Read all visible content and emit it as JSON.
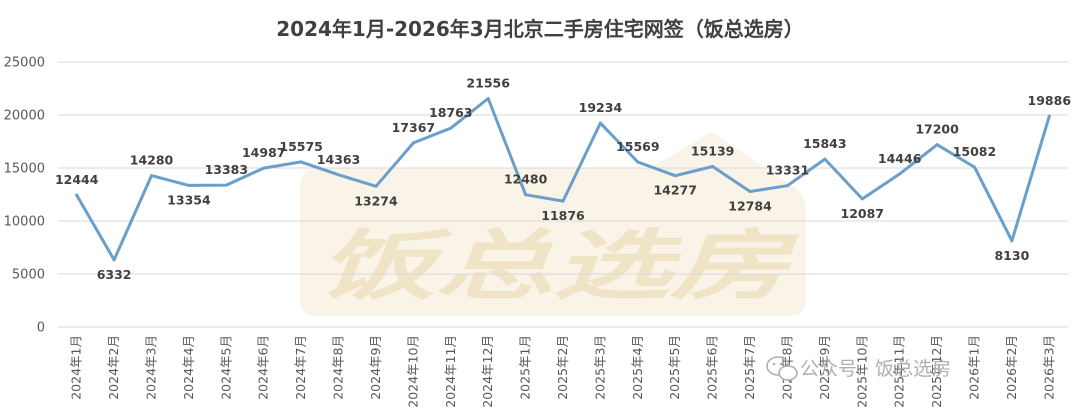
{
  "chart_data": {
    "type": "line",
    "title": "2024年1月-2026年3月北京二手房住宅网签（饭总选房）",
    "xlabel": "",
    "ylabel": "",
    "ylim": [
      0,
      25000
    ],
    "yticks": [
      0,
      5000,
      10000,
      15000,
      20000,
      25000
    ],
    "grid": true,
    "legend": "none",
    "categories": [
      "2024年1月",
      "2024年2月",
      "2024年3月",
      "2024年4月",
      "2024年5月",
      "2024年6月",
      "2024年7月",
      "2024年8月",
      "2024年9月",
      "2024年10月",
      "2024年11月",
      "2024年12月",
      "2025年1月",
      "2025年2月",
      "2025年3月",
      "2025年4月",
      "2025年5月",
      "2025年6月",
      "2025年7月",
      "2025年8月",
      "2025年9月",
      "2025年10月",
      "2025年11月",
      "2025年12月",
      "2026年1月",
      "2026年2月",
      "2026年3月"
    ],
    "series": [
      {
        "values": [
          12444,
          6332,
          14280,
          13354,
          13383,
          14987,
          15575,
          14363,
          13274,
          17367,
          18763,
          21556,
          12480,
          11876,
          19234,
          15569,
          14277,
          15139,
          12784,
          13331,
          15843,
          12087,
          14446,
          17200,
          15082,
          8130,
          19886
        ]
      }
    ]
  },
  "colors": {
    "line": "#6a9ecb",
    "grid": "#d9d9d9",
    "text": "#404040",
    "watermark": "#e0c78a"
  },
  "watermark": {
    "text": "饭总选房"
  },
  "footer": {
    "icon": "wechat-icon",
    "text": "公众号 · 饭总选房"
  }
}
